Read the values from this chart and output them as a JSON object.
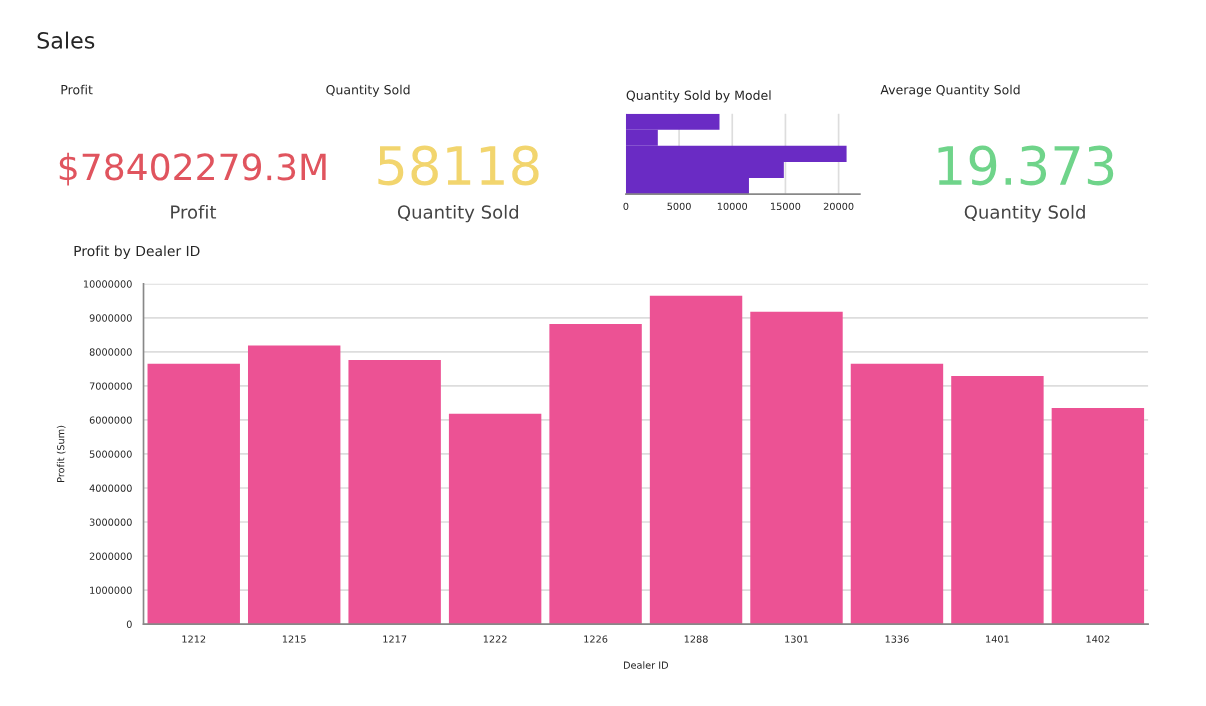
{
  "chart_data": [
    {
      "type": "other",
      "title": "Sales"
    },
    {
      "type": "other",
      "title": "Profit",
      "color": "#e0545e",
      "annotations": [
        "$78402279.3M",
        "Profit"
      ]
    },
    {
      "type": "other",
      "title": "Quantity Sold",
      "color": "#f2d56e",
      "annotations": [
        "58118",
        "Quantity Sold"
      ]
    },
    {
      "type": "bar",
      "title": "Quantity Sold by Model",
      "orientation": "horizontal",
      "categories": [
        null,
        null,
        null,
        null,
        null
      ],
      "values": [
        8800,
        3000,
        20750,
        14850,
        11570
      ],
      "color": "#6a2bc4",
      "xlim": [
        0,
        22000
      ],
      "xticks": [
        0,
        5000,
        10000,
        15000,
        20000
      ],
      "grid": "x"
    },
    {
      "type": "other",
      "title": "Average Quantity Sold",
      "color": "#6fd48a",
      "annotations": [
        "19.373",
        "Quantity Sold"
      ]
    },
    {
      "type": "bar",
      "title": "Profit by Dealer ID",
      "xlabel": "Dealer ID",
      "ylabel": "Profit (Sum)",
      "categories": [
        "1212",
        "1215",
        "1217",
        "1222",
        "1226",
        "1288",
        "1301",
        "1336",
        "1401",
        "1402"
      ],
      "values": [
        7650000,
        8190000,
        7760000,
        6180000,
        8820000,
        9650000,
        9180000,
        7650000,
        7290000,
        6350000
      ],
      "color": "#ec5294",
      "ylim": [
        0,
        10000000
      ],
      "yticks": [
        0,
        1000000,
        2000000,
        3000000,
        4000000,
        5000000,
        6000000,
        7000000,
        8000000,
        9000000,
        10000000
      ],
      "grid": "y"
    }
  ]
}
